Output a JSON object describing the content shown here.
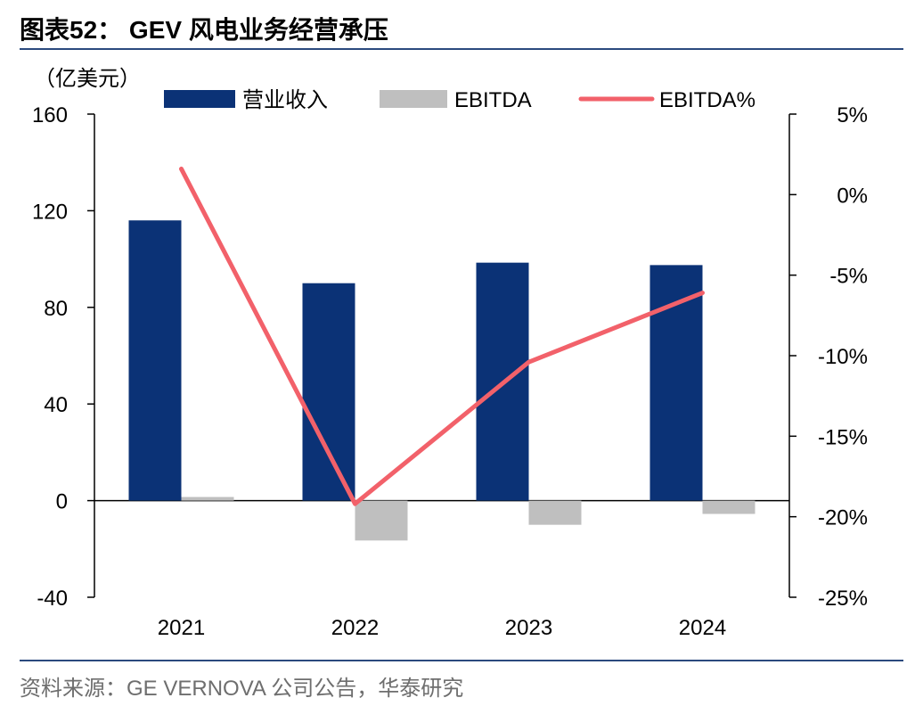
{
  "header": {
    "title": "图表52： GEV 风电业务经营承压"
  },
  "footer": {
    "source": "资料来源：GE VERNOVA 公司公告，华泰研究"
  },
  "colors": {
    "revenue": "#0b3276",
    "ebitda": "#bfbfbf",
    "ebitda_pct": "#f2616a",
    "rule": "#2b4a7e"
  },
  "chart_data": {
    "type": "bar",
    "unit_label": "（亿美元）",
    "categories": [
      "2021",
      "2022",
      "2023",
      "2024"
    ],
    "series": [
      {
        "name": "营业收入",
        "type": "bar",
        "axis": "left",
        "values": [
          116,
          90,
          98.5,
          97.5
        ]
      },
      {
        "name": "EBITDA",
        "type": "bar",
        "axis": "left",
        "values": [
          1.5,
          -16.5,
          -10,
          -5.5
        ]
      },
      {
        "name": "EBITDA%",
        "type": "line",
        "axis": "right",
        "values": [
          1.6,
          -19.2,
          -10.4,
          -6.1
        ]
      }
    ],
    "y_left": {
      "min": -40,
      "max": 160,
      "ticks": [
        "160",
        "120",
        "80",
        "40",
        "0",
        "-40"
      ]
    },
    "y_right": {
      "min": -25,
      "max": 5,
      "ticks": [
        "5%",
        "0%",
        "-5%",
        "-10%",
        "-15%",
        "-20%",
        "-25%"
      ]
    },
    "legend": [
      "营业收入",
      "EBITDA",
      "EBITDA%"
    ],
    "legend_position": "top",
    "grid": false
  }
}
